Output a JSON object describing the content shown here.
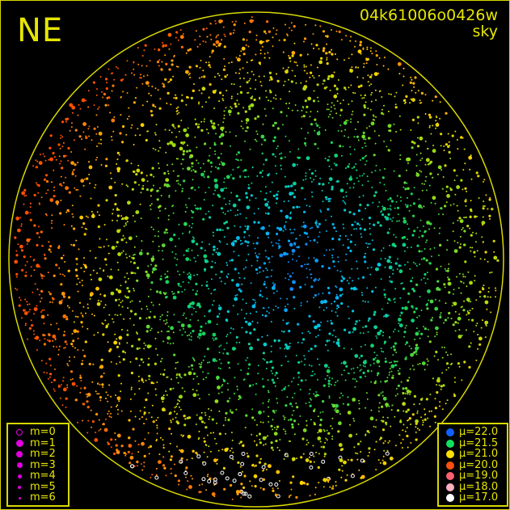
{
  "header": {
    "direction": "NE",
    "image_id": "04k61006o0426w",
    "map_type": "sky"
  },
  "magnitude_legend": [
    {
      "label": "m=0",
      "style": "ring"
    },
    {
      "label": "m=1"
    },
    {
      "label": "m=2"
    },
    {
      "label": "m=3"
    },
    {
      "label": "m=4"
    },
    {
      "label": "m=5"
    },
    {
      "label": "m=6"
    }
  ],
  "magnitude_legend_color": "#e000e0",
  "brightness_legend": [
    {
      "label": "μ=22.0",
      "color": "#1060ff"
    },
    {
      "label": "μ=21.5",
      "color": "#10e060"
    },
    {
      "label": "μ=21.0",
      "color": "#ffe000"
    },
    {
      "label": "μ=20.0",
      "color": "#ff5010"
    },
    {
      "label": "μ=19.0",
      "color": "#ff6070"
    },
    {
      "label": "μ=18.0",
      "color": "#ffb0c0"
    },
    {
      "label": "μ=17.0",
      "color": "#ffffff"
    }
  ],
  "accent_color": "#e6e600"
}
